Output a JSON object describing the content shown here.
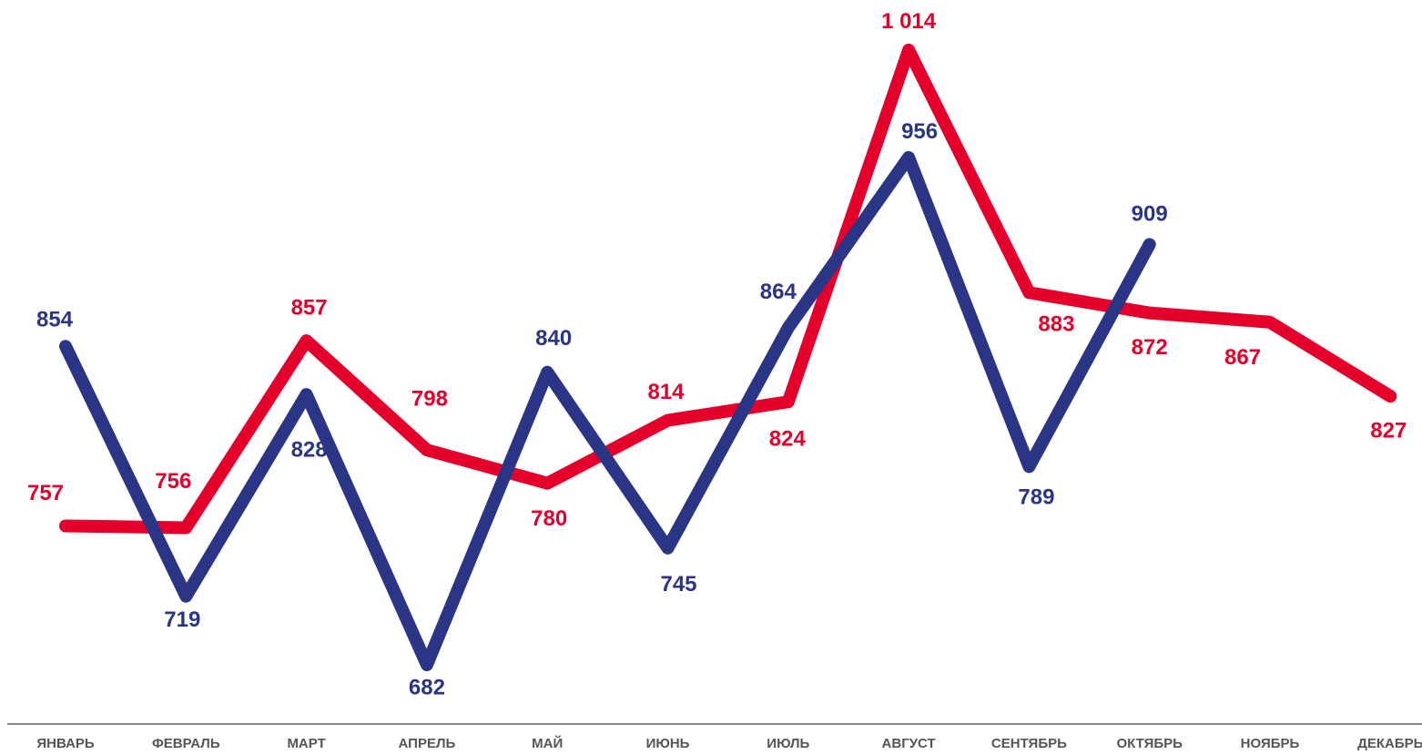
{
  "chart_data": {
    "type": "line",
    "categories": [
      "ЯНВАРЬ",
      "ФЕВРАЛЬ",
      "МАРТ",
      "АПРЕЛЬ",
      "МАЙ",
      "ИЮНЬ",
      "ИЮЛЬ",
      "АВГУСТ",
      "СЕНТЯБРЬ",
      "ОКТЯБРЬ",
      "НОЯБРЬ",
      "ДЕКАБРЬ"
    ],
    "series": [
      {
        "color": "#e4002b",
        "values": [
          757,
          756,
          857,
          798,
          780,
          814,
          824,
          1014,
          883,
          872,
          867,
          827
        ],
        "value_labels": [
          "757",
          "756",
          "857",
          "798",
          "780",
          "814",
          "824",
          "1 014",
          "883",
          "872",
          "867",
          "827"
        ]
      },
      {
        "color": "#2b3585",
        "values": [
          854,
          719,
          828,
          682,
          840,
          745,
          864,
          956,
          789,
          909,
          null,
          null
        ]
      }
    ],
    "ylim": [
      650,
      1041
    ]
  }
}
